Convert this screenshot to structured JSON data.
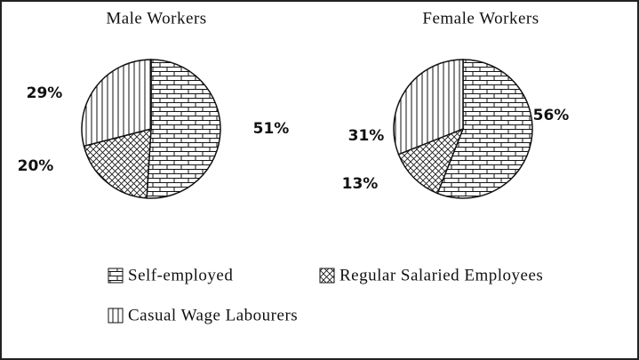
{
  "chart_data": [
    {
      "type": "pie",
      "title": "Male Workers",
      "values": [
        51,
        20,
        29
      ],
      "value_labels": [
        "51%",
        "20%",
        "29%"
      ]
    },
    {
      "type": "pie",
      "title": "Female Workers",
      "values": [
        56,
        13,
        31
      ],
      "value_labels": [
        "56%",
        "13%",
        "31%"
      ]
    }
  ],
  "categories": [
    "Self-employed",
    "Regular Salaried Employees",
    "Casual Wage Labourers"
  ]
}
